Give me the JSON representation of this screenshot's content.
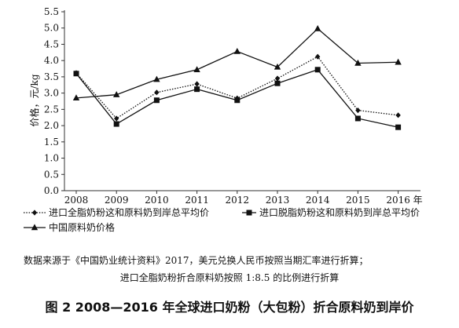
{
  "chart_data": {
    "type": "line",
    "title": "",
    "ylabel": "价格，元/kg",
    "xlabel": "",
    "x_unit_suffix": "年",
    "categories": [
      "2008",
      "2009",
      "2010",
      "2011",
      "2012",
      "2013",
      "2014",
      "2015",
      "2016"
    ],
    "ylim": [
      0,
      5.5
    ],
    "yticks": [
      "0.0",
      "0.5",
      "1.0",
      "1.5",
      "2.0",
      "2.5",
      "3.0",
      "3.5",
      "4.0",
      "4.5",
      "5.0",
      "5.5"
    ],
    "grid": false,
    "legend_position": "bottom",
    "series": [
      {
        "name": "进口全脂奶粉这和原料奶到岸总平均价",
        "marker": "diamond",
        "line_style": "dotted",
        "color": "#111111",
        "values": [
          3.62,
          2.22,
          3.02,
          3.28,
          2.84,
          3.45,
          4.12,
          2.47,
          2.32
        ]
      },
      {
        "name": "进口脱脂奶粉这和原料奶到岸总平均价",
        "marker": "square",
        "line_style": "solid",
        "color": "#111111",
        "values": [
          3.6,
          2.05,
          2.78,
          3.12,
          2.78,
          3.3,
          3.72,
          2.22,
          1.95
        ]
      },
      {
        "name": "中国原料奶价格",
        "marker": "triangle",
        "line_style": "solid",
        "color": "#111111",
        "values": [
          2.85,
          2.95,
          3.42,
          3.72,
          4.28,
          3.8,
          4.98,
          3.92,
          3.95
        ]
      }
    ]
  },
  "source_note": {
    "line1": "数据来源于《中国奶业统计资料》2017，美元兑换人民币按照当期汇率进行折算；",
    "line2": "进口全脂奶粉折合原料奶按照 1:8.5 的比例进行折算"
  },
  "caption": "图 2  2008—2016 年全球进口奶粉（大包粉）折合原料奶到岸价"
}
